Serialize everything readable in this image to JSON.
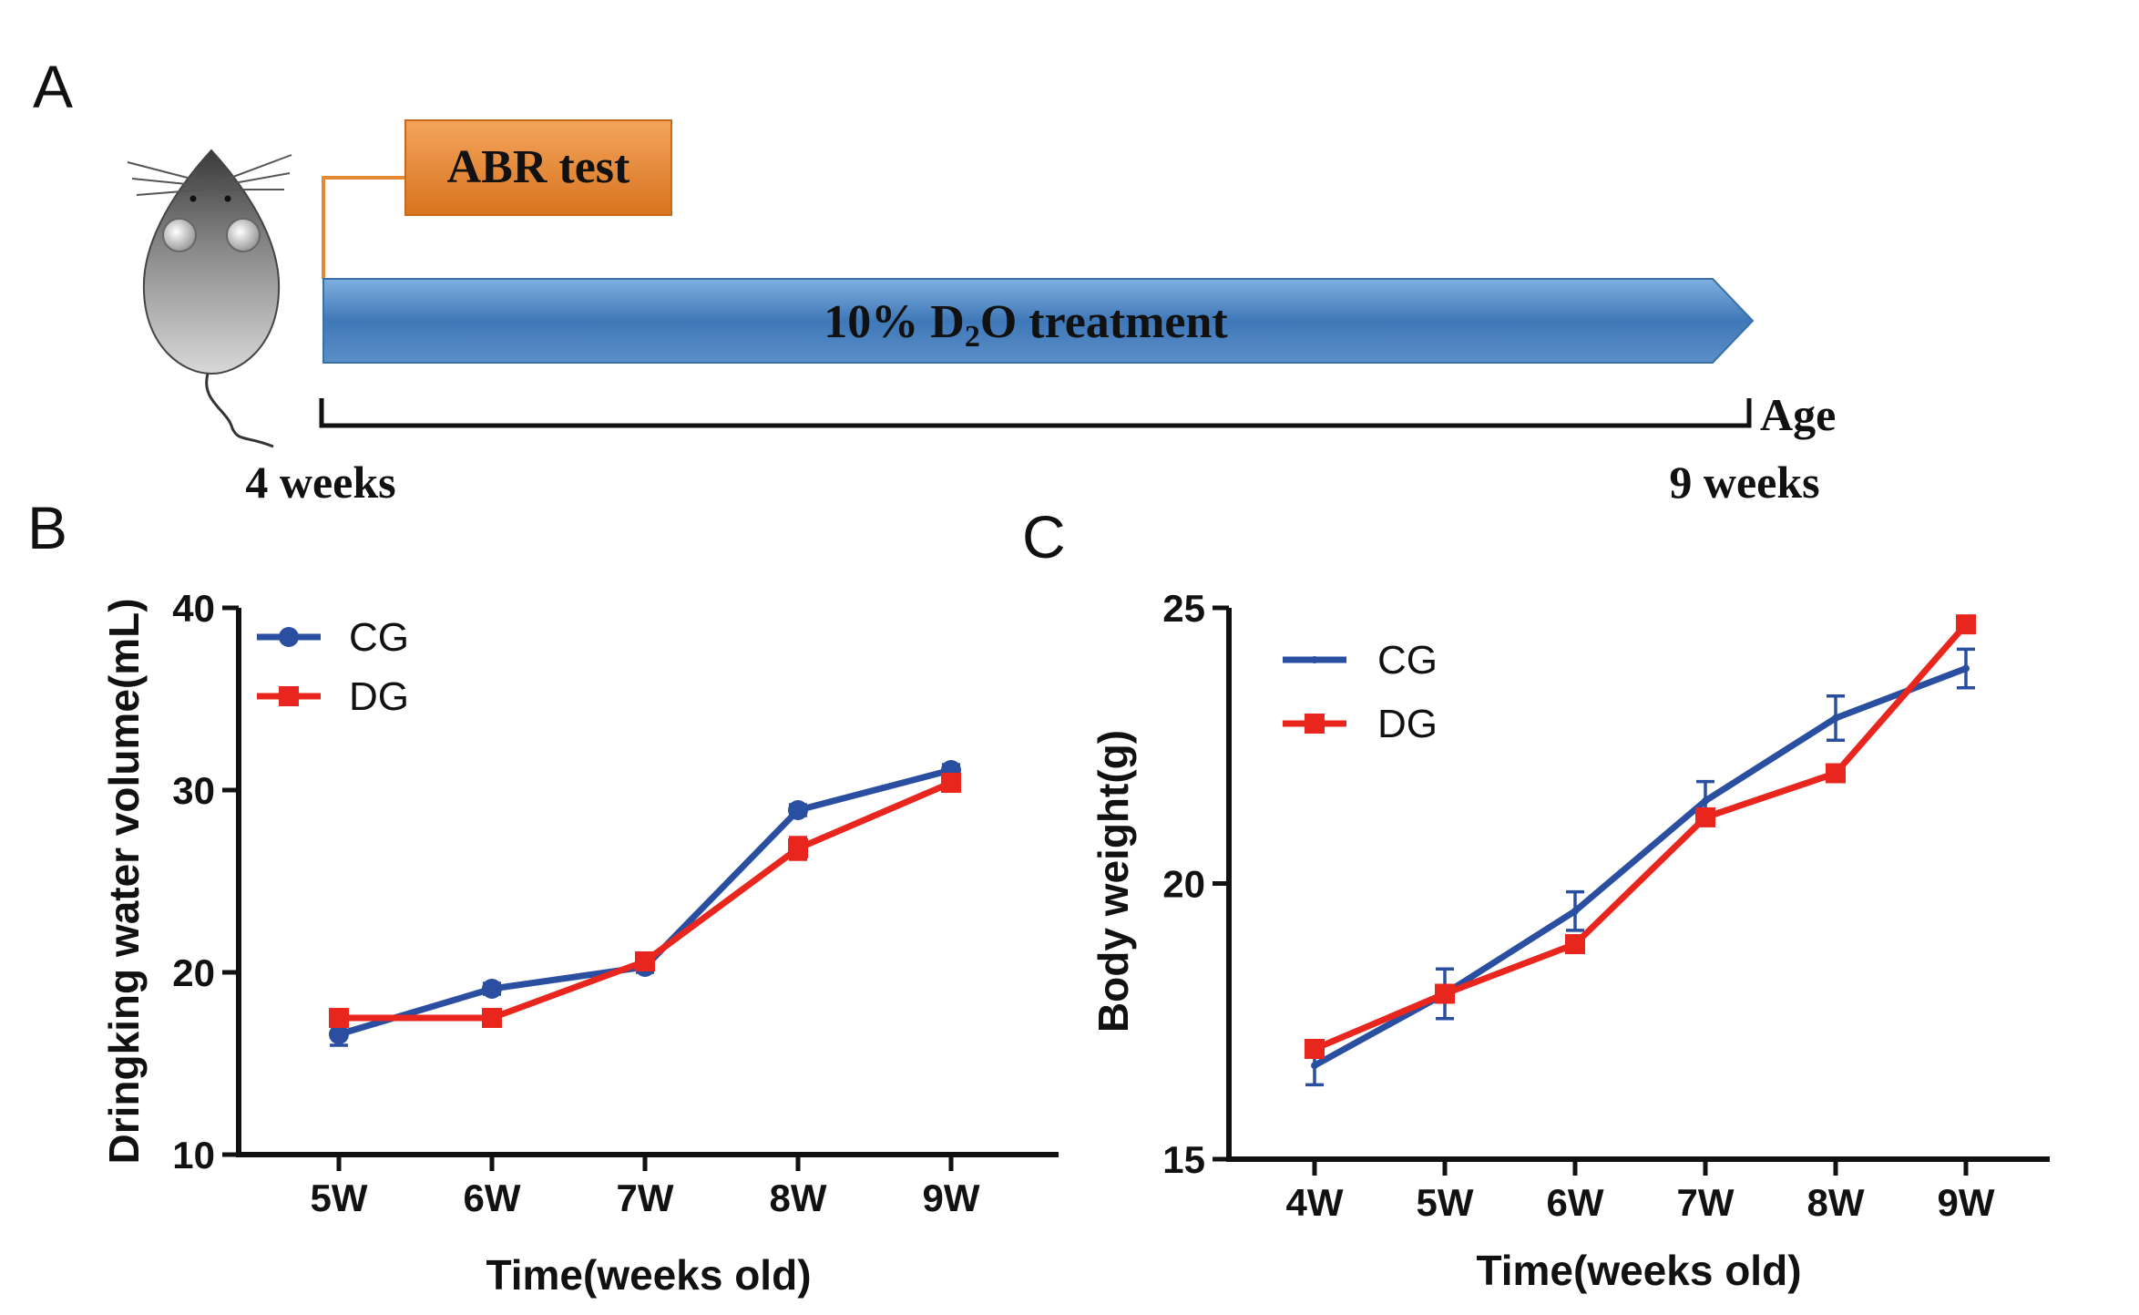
{
  "panels": {
    "a": {
      "letter": "A"
    },
    "b": {
      "letter": "B"
    },
    "c": {
      "letter": "C"
    }
  },
  "timeline": {
    "abr_label": "ABR test",
    "treatment_prefix": "10% D",
    "treatment_subscript": "2",
    "treatment_suffix": "O treatment",
    "age_label": "Age",
    "start_label": "4 weeks",
    "end_label": "9 weeks"
  },
  "colors": {
    "cg": "#2a4fa0",
    "dg": "#e8261e",
    "abr_box": "#e58a33",
    "treatment_arrow": "#4a86c5"
  },
  "chart_data": [
    {
      "type": "line",
      "panel": "B",
      "categories": [
        "5W",
        "6W",
        "7W",
        "8W",
        "9W"
      ],
      "ylabel": "Dringking water volume(mL)",
      "xlabel": "Time(weeks old)",
      "ylim": [
        10,
        40
      ],
      "yticks": [
        "10",
        "20",
        "30",
        "40"
      ],
      "legend_position": "top-left",
      "series": [
        {
          "name": "CG",
          "marker": "circle",
          "color": "#2a4fa0",
          "values": [
            16.6,
            19.1,
            20.3,
            28.9,
            31.1
          ],
          "errors": [
            0.6,
            0.3,
            0.3,
            0.3,
            0.3
          ]
        },
        {
          "name": "DG",
          "marker": "square",
          "color": "#e8261e",
          "values": [
            17.5,
            17.5,
            20.6,
            26.8,
            30.4
          ],
          "errors": [
            0.3,
            0.4,
            0.3,
            0.6,
            0.3
          ]
        }
      ]
    },
    {
      "type": "line",
      "panel": "C",
      "categories": [
        "4W",
        "5W",
        "6W",
        "7W",
        "8W",
        "9W"
      ],
      "ylabel": "Body  weight(g)",
      "xlabel": "Time(weeks old)",
      "ylim": [
        15,
        25
      ],
      "yticks": [
        "15",
        "20",
        "25"
      ],
      "legend_position": "top-left",
      "series": [
        {
          "name": "CG",
          "marker": "dot",
          "color": "#2a4fa0",
          "values": [
            16.7,
            18.0,
            19.5,
            21.5,
            23.0,
            23.9
          ],
          "errors": [
            0.35,
            0.45,
            0.35,
            0.35,
            0.4,
            0.35
          ]
        },
        {
          "name": "DG",
          "marker": "square",
          "color": "#e8261e",
          "values": [
            17.0,
            18.0,
            18.9,
            21.2,
            22.0,
            24.7
          ],
          "errors": [
            0.1,
            0.1,
            0.1,
            0.1,
            0.1,
            0.1
          ]
        }
      ]
    }
  ]
}
